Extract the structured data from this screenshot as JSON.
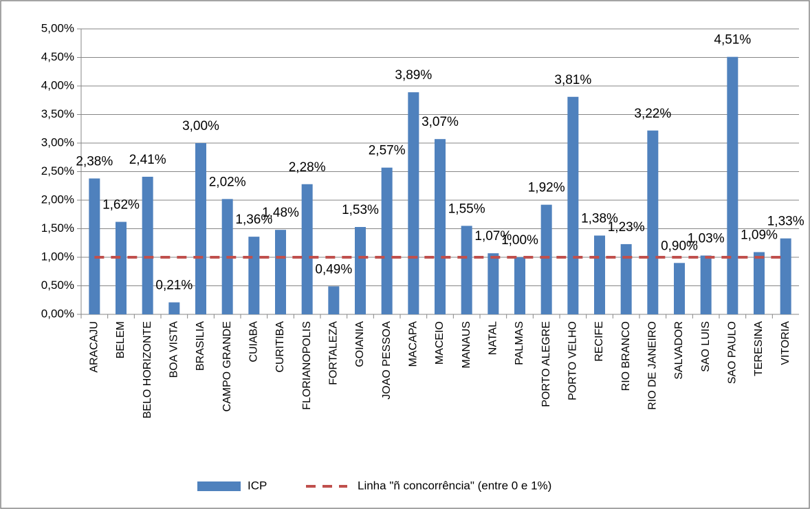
{
  "chart_data": {
    "type": "bar",
    "categories": [
      "ARACAJU",
      "BELEM",
      "BELO HORIZONTE",
      "BOA VISTA",
      "BRASILIA",
      "CAMPO GRANDE",
      "CUIABA",
      "CURITIBA",
      "FLORIANOPOLIS",
      "FORTALEZA",
      "GOIANIA",
      "JOAO PESSOA",
      "MACAPA",
      "MACEIO",
      "MANAUS",
      "NATAL",
      "PALMAS",
      "PORTO ALEGRE",
      "PORTO VELHO",
      "RECIFE",
      "RIO BRANCO",
      "RIO DE JANEIRO",
      "SALVADOR",
      "SAO LUIS",
      "SAO PAULO",
      "TERESINA",
      "VITORIA"
    ],
    "series": [
      {
        "name": "ICP",
        "type": "bar",
        "color": "#4f81bd",
        "values": [
          2.38,
          1.62,
          2.41,
          0.21,
          3.0,
          2.02,
          1.36,
          1.48,
          2.28,
          0.49,
          1.53,
          2.57,
          3.89,
          3.07,
          1.55,
          1.07,
          1.0,
          1.92,
          3.81,
          1.38,
          1.23,
          3.22,
          0.9,
          1.03,
          4.51,
          1.09,
          1.33
        ],
        "value_labels": [
          "2,38%",
          "1,62%",
          "2,41%",
          "0,21%",
          "3,00%",
          "2,02%",
          "1,36%",
          "1,48%",
          "2,28%",
          "0,49%",
          "1,53%",
          "2,57%",
          "3,89%",
          "3,07%",
          "1,55%",
          "1,07%",
          "1,00%",
          "1,92%",
          "3,81%",
          "1,38%",
          "1,23%",
          "3,22%",
          "0,90%",
          "1,03%",
          "4,51%",
          "1,09%",
          "1,33%"
        ]
      },
      {
        "name": "Linha \"ñ concorrência\" (entre 0 e 1%)",
        "type": "line",
        "dashed": true,
        "color": "#c0504d",
        "values": [
          1,
          1,
          1,
          1,
          1,
          1,
          1,
          1,
          1,
          1,
          1,
          1,
          1,
          1,
          1,
          1,
          1,
          1,
          1,
          1,
          1,
          1,
          1,
          1,
          1,
          1,
          1
        ]
      }
    ],
    "ylim": [
      0,
      5
    ],
    "yticks": [
      {
        "value": 0,
        "label": "0,00%"
      },
      {
        "value": 0.5,
        "label": "0,50%"
      },
      {
        "value": 1,
        "label": "1,00%"
      },
      {
        "value": 1.5,
        "label": "1,50%"
      },
      {
        "value": 2,
        "label": "2,00%"
      },
      {
        "value": 2.5,
        "label": "2,50%"
      },
      {
        "value": 3,
        "label": "3,00%"
      },
      {
        "value": 3.5,
        "label": "3,50%"
      },
      {
        "value": 4,
        "label": "4,00%"
      },
      {
        "value": 4.5,
        "label": "4,50%"
      },
      {
        "value": 5,
        "label": "5,00%"
      }
    ],
    "grid": true,
    "legend": "bottom"
  }
}
